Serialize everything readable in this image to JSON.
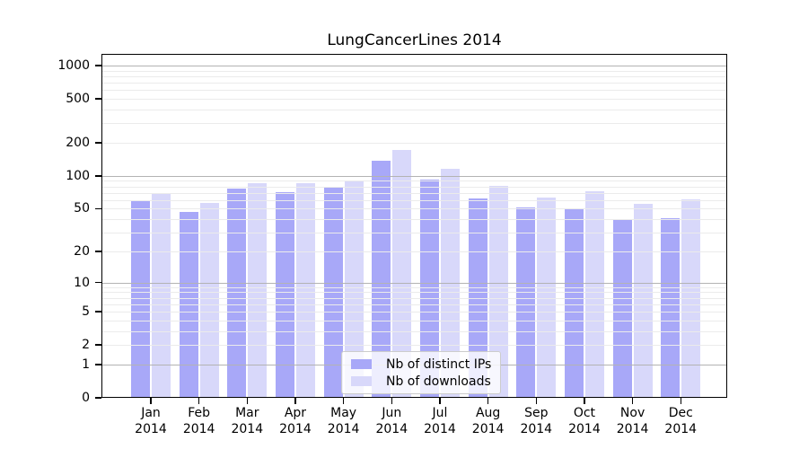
{
  "chart_data": {
    "type": "bar",
    "title": "LungCancerLines 2014",
    "categories": [
      "Jan",
      "Feb",
      "Mar",
      "Apr",
      "May",
      "Jun",
      "Jul",
      "Aug",
      "Sep",
      "Oct",
      "Nov",
      "Dec"
    ],
    "category_year": "2014",
    "series": [
      {
        "name": "Nb of distinct IPs",
        "color": "#a8a8f8",
        "values": [
          59,
          47,
          77,
          71,
          78,
          137,
          92,
          62,
          51,
          50,
          39,
          41
        ]
      },
      {
        "name": "Nb of downloads",
        "color": "#d8d8fa",
        "values": [
          69,
          57,
          86,
          85,
          91,
          171,
          115,
          81,
          63,
          72,
          55,
          61
        ]
      }
    ],
    "y_scale": "log10(1+x)",
    "ylim": [
      0,
      1276
    ],
    "y_tick_values": [
      0,
      1,
      2,
      5,
      10,
      20,
      50,
      100,
      200,
      500,
      1000
    ],
    "y_major_gridlines": [
      1,
      10,
      100,
      1000
    ],
    "y_minor_gridlines": [
      2,
      3,
      4,
      5,
      6,
      7,
      8,
      9,
      20,
      30,
      40,
      50,
      60,
      70,
      80,
      90,
      200,
      300,
      400,
      500,
      600,
      700,
      800,
      900
    ],
    "grid": true,
    "legend_position": "bottom-center",
    "xlabel": "",
    "ylabel": ""
  },
  "colors": {
    "background": "#ffffff",
    "axis": "#000000",
    "major_grid": "#b3b3b3",
    "minor_grid": "#ebebeb",
    "legend_border": "#cccccc",
    "legend_background": "rgba(255,255,255,0.8)",
    "text": "#000000"
  }
}
